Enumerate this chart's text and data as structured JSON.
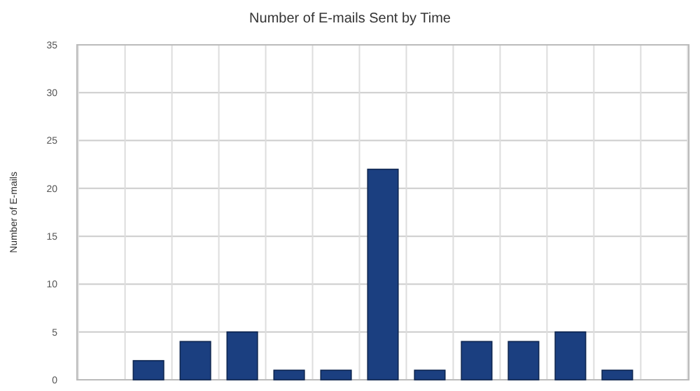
{
  "chart_data": {
    "type": "bar",
    "title": "Number of E-mails Sent by Time",
    "ylabel": "Number of E-mails",
    "categories": [
      null,
      null,
      null,
      null,
      null,
      null,
      null,
      null,
      null,
      null,
      null,
      null,
      null
    ],
    "values": [
      0,
      2,
      4,
      5,
      1,
      1,
      22,
      1,
      4,
      4,
      5,
      1,
      0
    ],
    "color": "#1b3f80",
    "ylim": [
      0,
      35
    ],
    "yticks": [
      0,
      5,
      10,
      15,
      20,
      25,
      30,
      35
    ],
    "grid": true
  }
}
